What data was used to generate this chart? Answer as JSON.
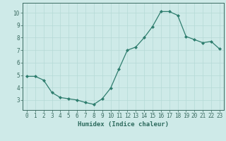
{
  "x": [
    0,
    1,
    2,
    3,
    4,
    5,
    6,
    7,
    8,
    9,
    10,
    11,
    12,
    13,
    14,
    15,
    16,
    17,
    18,
    19,
    20,
    21,
    22,
    23
  ],
  "y": [
    4.9,
    4.9,
    4.6,
    3.6,
    3.2,
    3.1,
    3.0,
    2.8,
    2.65,
    3.1,
    3.95,
    5.5,
    7.0,
    7.25,
    8.0,
    8.9,
    10.1,
    10.1,
    9.8,
    8.1,
    7.85,
    7.6,
    7.7,
    7.1
  ],
  "line_color": "#2e7d6e",
  "marker": "D",
  "marker_size": 2.0,
  "bg_color": "#ceeae8",
  "grid_color": "#b5d9d6",
  "xlabel": "Humidex (Indice chaleur)",
  "xlim": [
    -0.5,
    23.5
  ],
  "ylim": [
    2.2,
    10.8
  ],
  "yticks": [
    3,
    4,
    5,
    6,
    7,
    8,
    9,
    10
  ],
  "xticks": [
    0,
    1,
    2,
    3,
    4,
    5,
    6,
    7,
    8,
    9,
    10,
    11,
    12,
    13,
    14,
    15,
    16,
    17,
    18,
    19,
    20,
    21,
    22,
    23
  ],
  "axis_color": "#3a6b60",
  "tick_label_color": "#2e6b5e",
  "font_size": 5.5,
  "xlabel_font_size": 6.5
}
